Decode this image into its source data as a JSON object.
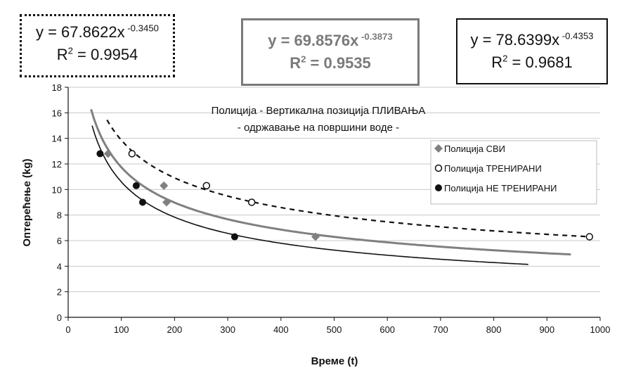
{
  "equations": [
    {
      "lhs": "y = 67.8622x",
      "exp": " -0.3450",
      "r2_label": "R",
      "r2_sup": "2",
      "r2_value": " = 0.9954",
      "color": "#111111",
      "style": "dotted"
    },
    {
      "lhs": "y = 69.8576x",
      "exp": " -0.3873",
      "r2_label": "R",
      "r2_sup": "2",
      "r2_value": " = 0.9535",
      "color": "#7a7a7a",
      "style": "solid-gray"
    },
    {
      "lhs": "y = 78.6399x",
      "exp": " -0.4353",
      "r2_label": "R",
      "r2_sup": "2",
      "r2_value": " = 0.9681",
      "color": "#111111",
      "style": "solid"
    }
  ],
  "chart_data": {
    "type": "scatter",
    "title": "Полиција - Вертикална позиција ПЛИВАЊА",
    "subtitle": "- одржавање на површини воде -",
    "xlabel": "Време (t)",
    "ylabel": "Оптерећење (kg)",
    "xlim": [
      0,
      1000
    ],
    "ylim": [
      0,
      18
    ],
    "xticks": [
      0,
      100,
      200,
      300,
      400,
      500,
      600,
      700,
      800,
      900,
      1000
    ],
    "yticks": [
      0,
      2,
      4,
      6,
      8,
      10,
      12,
      14,
      16,
      18
    ],
    "grid": "horizontal",
    "legend_position": "right",
    "series": [
      {
        "name": "Полиција СВИ",
        "marker": "diamond",
        "color": "#808080",
        "x": [
          75,
          180,
          185,
          465
        ],
        "y": [
          12.8,
          10.3,
          9.0,
          6.3
        ]
      },
      {
        "name": "Полиција ТРЕНИРАНИ",
        "marker": "open-circle",
        "color": "#111111",
        "x": [
          120,
          260,
          345,
          980
        ],
        "y": [
          12.8,
          10.3,
          9.0,
          6.3
        ]
      },
      {
        "name": "Полиција НЕ ТРЕНИРАНИ",
        "marker": "filled-circle",
        "color": "#111111",
        "x": [
          60,
          128,
          140,
          313
        ],
        "y": [
          12.8,
          10.3,
          9.0,
          6.3
        ]
      }
    ],
    "trendlines": [
      {
        "series": "Полиција СВИ",
        "a": 69.8576,
        "b": -0.3873,
        "x_range": [
          43,
          945
        ],
        "color": "#808080",
        "style": "solid"
      },
      {
        "series": "Полиција ТРЕНИРАНИ",
        "a": 67.8622,
        "b": -0.345,
        "x_range": [
          73,
          978
        ],
        "color": "#111111",
        "style": "dashed"
      },
      {
        "series": "Полиција НЕ ТРЕНИРАНИ",
        "a": 78.6399,
        "b": -0.4353,
        "x_range": [
          45,
          865
        ],
        "color": "#111111",
        "style": "solid"
      }
    ]
  }
}
